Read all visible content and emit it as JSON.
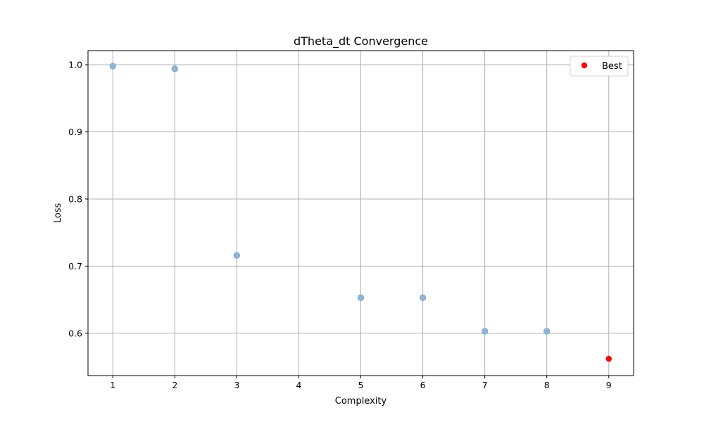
{
  "chart_data": {
    "type": "scatter",
    "title": "dTheta_dt Convergence",
    "xlabel": "Complexity",
    "ylabel": "Loss",
    "xlim": [
      0.6,
      9.4
    ],
    "ylim": [
      0.537,
      1.021
    ],
    "xticks": [
      1,
      2,
      3,
      4,
      5,
      6,
      7,
      8,
      9
    ],
    "yticks": [
      0.6,
      0.7,
      0.8,
      0.9,
      1.0
    ],
    "ytick_labels": [
      "0.6",
      "0.7",
      "0.8",
      "0.9",
      "1.0"
    ],
    "grid": true,
    "legend_position": "top-right",
    "series": [
      {
        "color": "#8fb6d8",
        "x": [
          1,
          2,
          3,
          5,
          6,
          7,
          8
        ],
        "y": [
          0.998,
          0.994,
          0.716,
          0.653,
          0.653,
          0.603,
          0.603
        ]
      },
      {
        "name": "Best",
        "color": "#ff0000",
        "x": [
          9
        ],
        "y": [
          0.562
        ]
      }
    ]
  }
}
